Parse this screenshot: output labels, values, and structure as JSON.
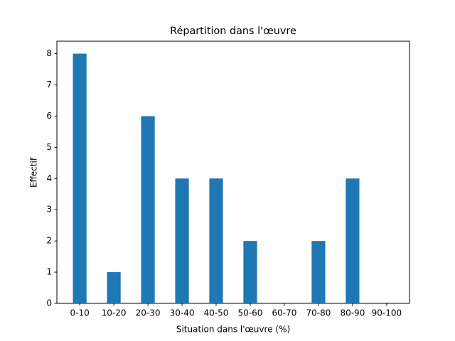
{
  "chart_data": {
    "type": "bar",
    "title": "Répartition dans l'œuvre",
    "x_label": "Situation dans l'œuvre (%)",
    "y_label": "Effectif",
    "categories": [
      "0-10",
      "10-20",
      "20-30",
      "30-40",
      "40-50",
      "50-60",
      "60-70",
      "70-80",
      "80-90",
      "90-100"
    ],
    "values": [
      8,
      1,
      6,
      4,
      4,
      2,
      0,
      2,
      4,
      0
    ],
    "color": "#1f77b4",
    "ylim": [
      0,
      8.4
    ],
    "yticks": [
      0,
      1,
      2,
      3,
      4,
      5,
      6,
      7,
      8
    ],
    "grid": false
  }
}
